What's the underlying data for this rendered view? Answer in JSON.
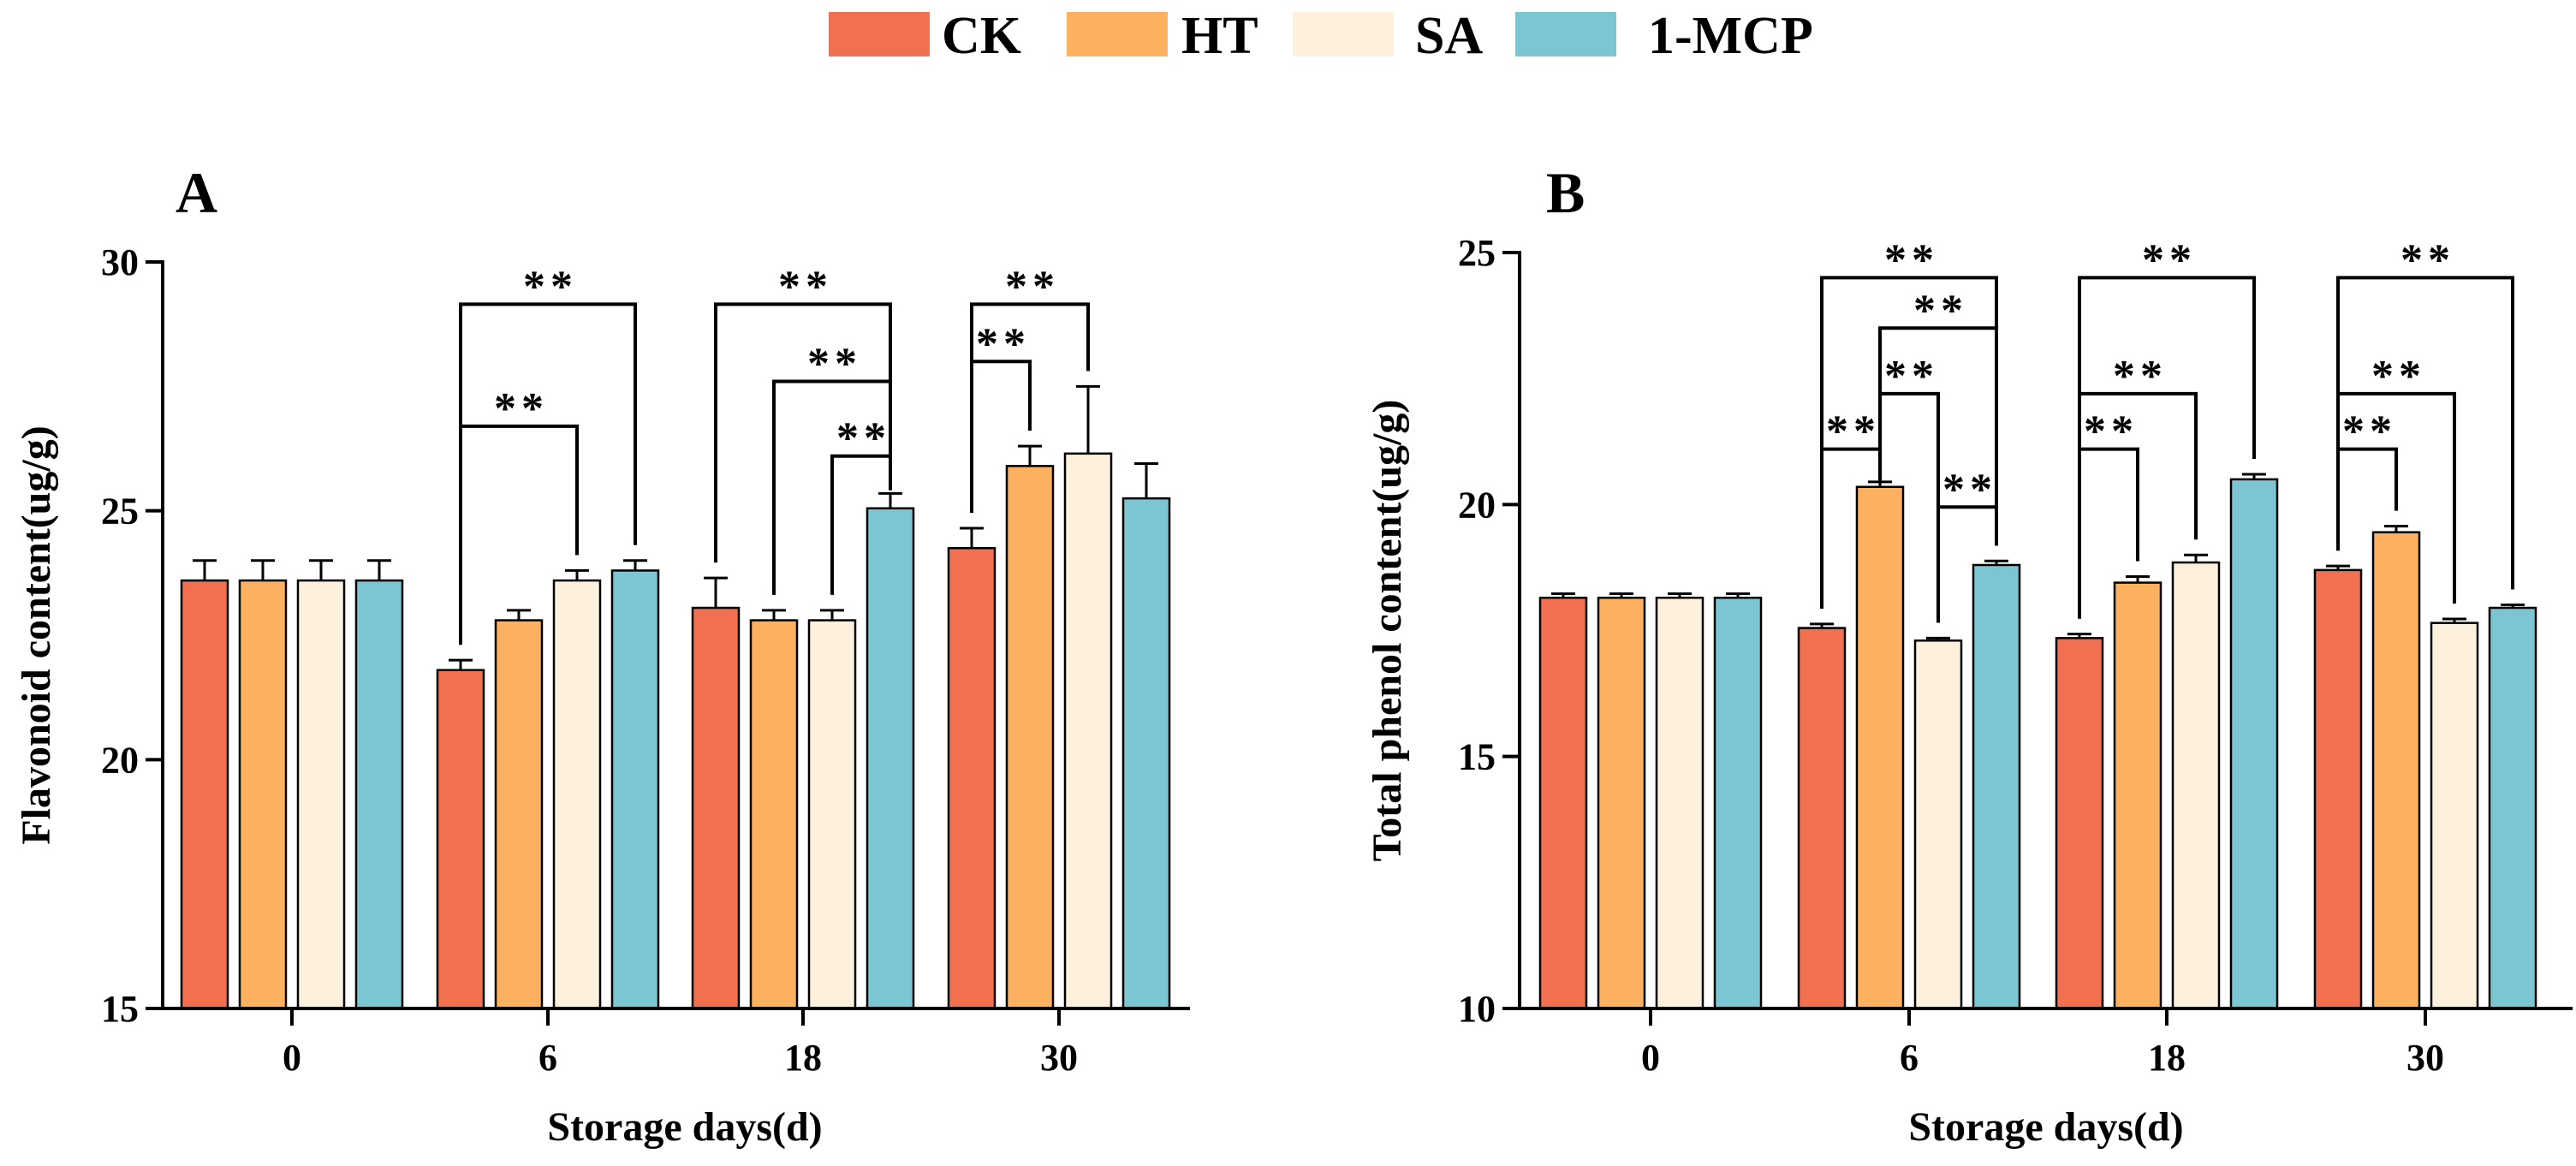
{
  "legend": [
    {
      "name": "CK",
      "color": "#F07050"
    },
    {
      "name": "HT",
      "color": "#FBB160"
    },
    {
      "name": "SA",
      "color": "#FDF0DC"
    },
    {
      "name": "1-MCP",
      "color": "#7CC5D2"
    }
  ],
  "chart_data": [
    {
      "type": "bar",
      "panel": "A",
      "title": "",
      "xlabel": "Storage days(d)",
      "ylabel": "Flavonoid content(ug/g)",
      "ylim": [
        15,
        30
      ],
      "yticks": [
        "15",
        "20",
        "25",
        "30"
      ],
      "categories": [
        "0",
        "6",
        "18",
        "30"
      ],
      "series": [
        {
          "name": "CK",
          "values": [
            23.6,
            21.8,
            23.05,
            24.25
          ],
          "errors": [
            0.4,
            0.2,
            0.6,
            0.4
          ]
        },
        {
          "name": "HT",
          "values": [
            23.6,
            22.8,
            22.8,
            25.9
          ],
          "errors": [
            0.4,
            0.2,
            0.2,
            0.4
          ]
        },
        {
          "name": "SA",
          "values": [
            23.6,
            23.6,
            22.8,
            26.15
          ],
          "errors": [
            0.4,
            0.2,
            0.2,
            1.35
          ]
        },
        {
          "name": "1-MCP",
          "values": [
            23.6,
            23.8,
            25.05,
            25.25
          ],
          "errors": [
            0.4,
            0.2,
            0.3,
            0.7
          ]
        }
      ],
      "significance": [
        {
          "group": 1,
          "from": 0,
          "to": 3,
          "y": 29.15,
          "label": "**"
        },
        {
          "group": 1,
          "from": 0,
          "to": 2,
          "y": 26.7,
          "label": "**"
        },
        {
          "group": 2,
          "from": 0,
          "to": 3,
          "y": 29.15,
          "label": "**"
        },
        {
          "group": 2,
          "from": 1,
          "to": 3,
          "y": 27.6,
          "label": "**"
        },
        {
          "group": 2,
          "from": 2,
          "to": 3,
          "y": 26.1,
          "label": "**"
        },
        {
          "group": 3,
          "from": 0,
          "to": 2,
          "y": 29.15,
          "label": "**"
        },
        {
          "group": 3,
          "from": 0,
          "to": 1,
          "y": 28.0,
          "label": "**"
        }
      ]
    },
    {
      "type": "bar",
      "panel": "B",
      "title": "",
      "xlabel": "Storage days(d)",
      "ylabel": "Total phenol content(ug/g)",
      "ylim": [
        10,
        25
      ],
      "yticks": [
        "10",
        "15",
        "20",
        "25"
      ],
      "categories": [
        "0",
        "6",
        "18",
        "30"
      ],
      "series": [
        {
          "name": "CK",
          "values": [
            18.15,
            17.55,
            17.35,
            18.7
          ],
          "errors": [
            0.08,
            0.08,
            0.08,
            0.08
          ]
        },
        {
          "name": "HT",
          "values": [
            18.15,
            20.35,
            18.45,
            19.45
          ],
          "errors": [
            0.08,
            0.1,
            0.12,
            0.12
          ]
        },
        {
          "name": "SA",
          "values": [
            18.15,
            17.3,
            18.85,
            17.65
          ],
          "errors": [
            0.08,
            0.05,
            0.15,
            0.08
          ]
        },
        {
          "name": "1-MCP",
          "values": [
            18.15,
            18.8,
            20.5,
            17.95
          ],
          "errors": [
            0.08,
            0.08,
            0.1,
            0.06
          ]
        }
      ],
      "significance": [
        {
          "group": 1,
          "from": 0,
          "to": 3,
          "y": 24.5,
          "label": "**"
        },
        {
          "group": 1,
          "from": 1,
          "to": 3,
          "y": 23.5,
          "label": "**"
        },
        {
          "group": 1,
          "from": 1,
          "to": 2,
          "y": 22.2,
          "label": "**"
        },
        {
          "group": 1,
          "from": 0,
          "to": 1,
          "y": 21.1,
          "label": "**"
        },
        {
          "group": 1,
          "from": 2,
          "to": 3,
          "y": 19.95,
          "label": "**"
        },
        {
          "group": 2,
          "from": 0,
          "to": 3,
          "y": 24.5,
          "label": "**"
        },
        {
          "group": 2,
          "from": 0,
          "to": 2,
          "y": 22.2,
          "label": "**"
        },
        {
          "group": 2,
          "from": 0,
          "to": 1,
          "y": 21.1,
          "label": "**"
        },
        {
          "group": 3,
          "from": 0,
          "to": 3,
          "y": 24.5,
          "label": "**"
        },
        {
          "group": 3,
          "from": 0,
          "to": 2,
          "y": 22.2,
          "label": "**"
        },
        {
          "group": 3,
          "from": 0,
          "to": 1,
          "y": 21.1,
          "label": "**"
        }
      ]
    }
  ]
}
